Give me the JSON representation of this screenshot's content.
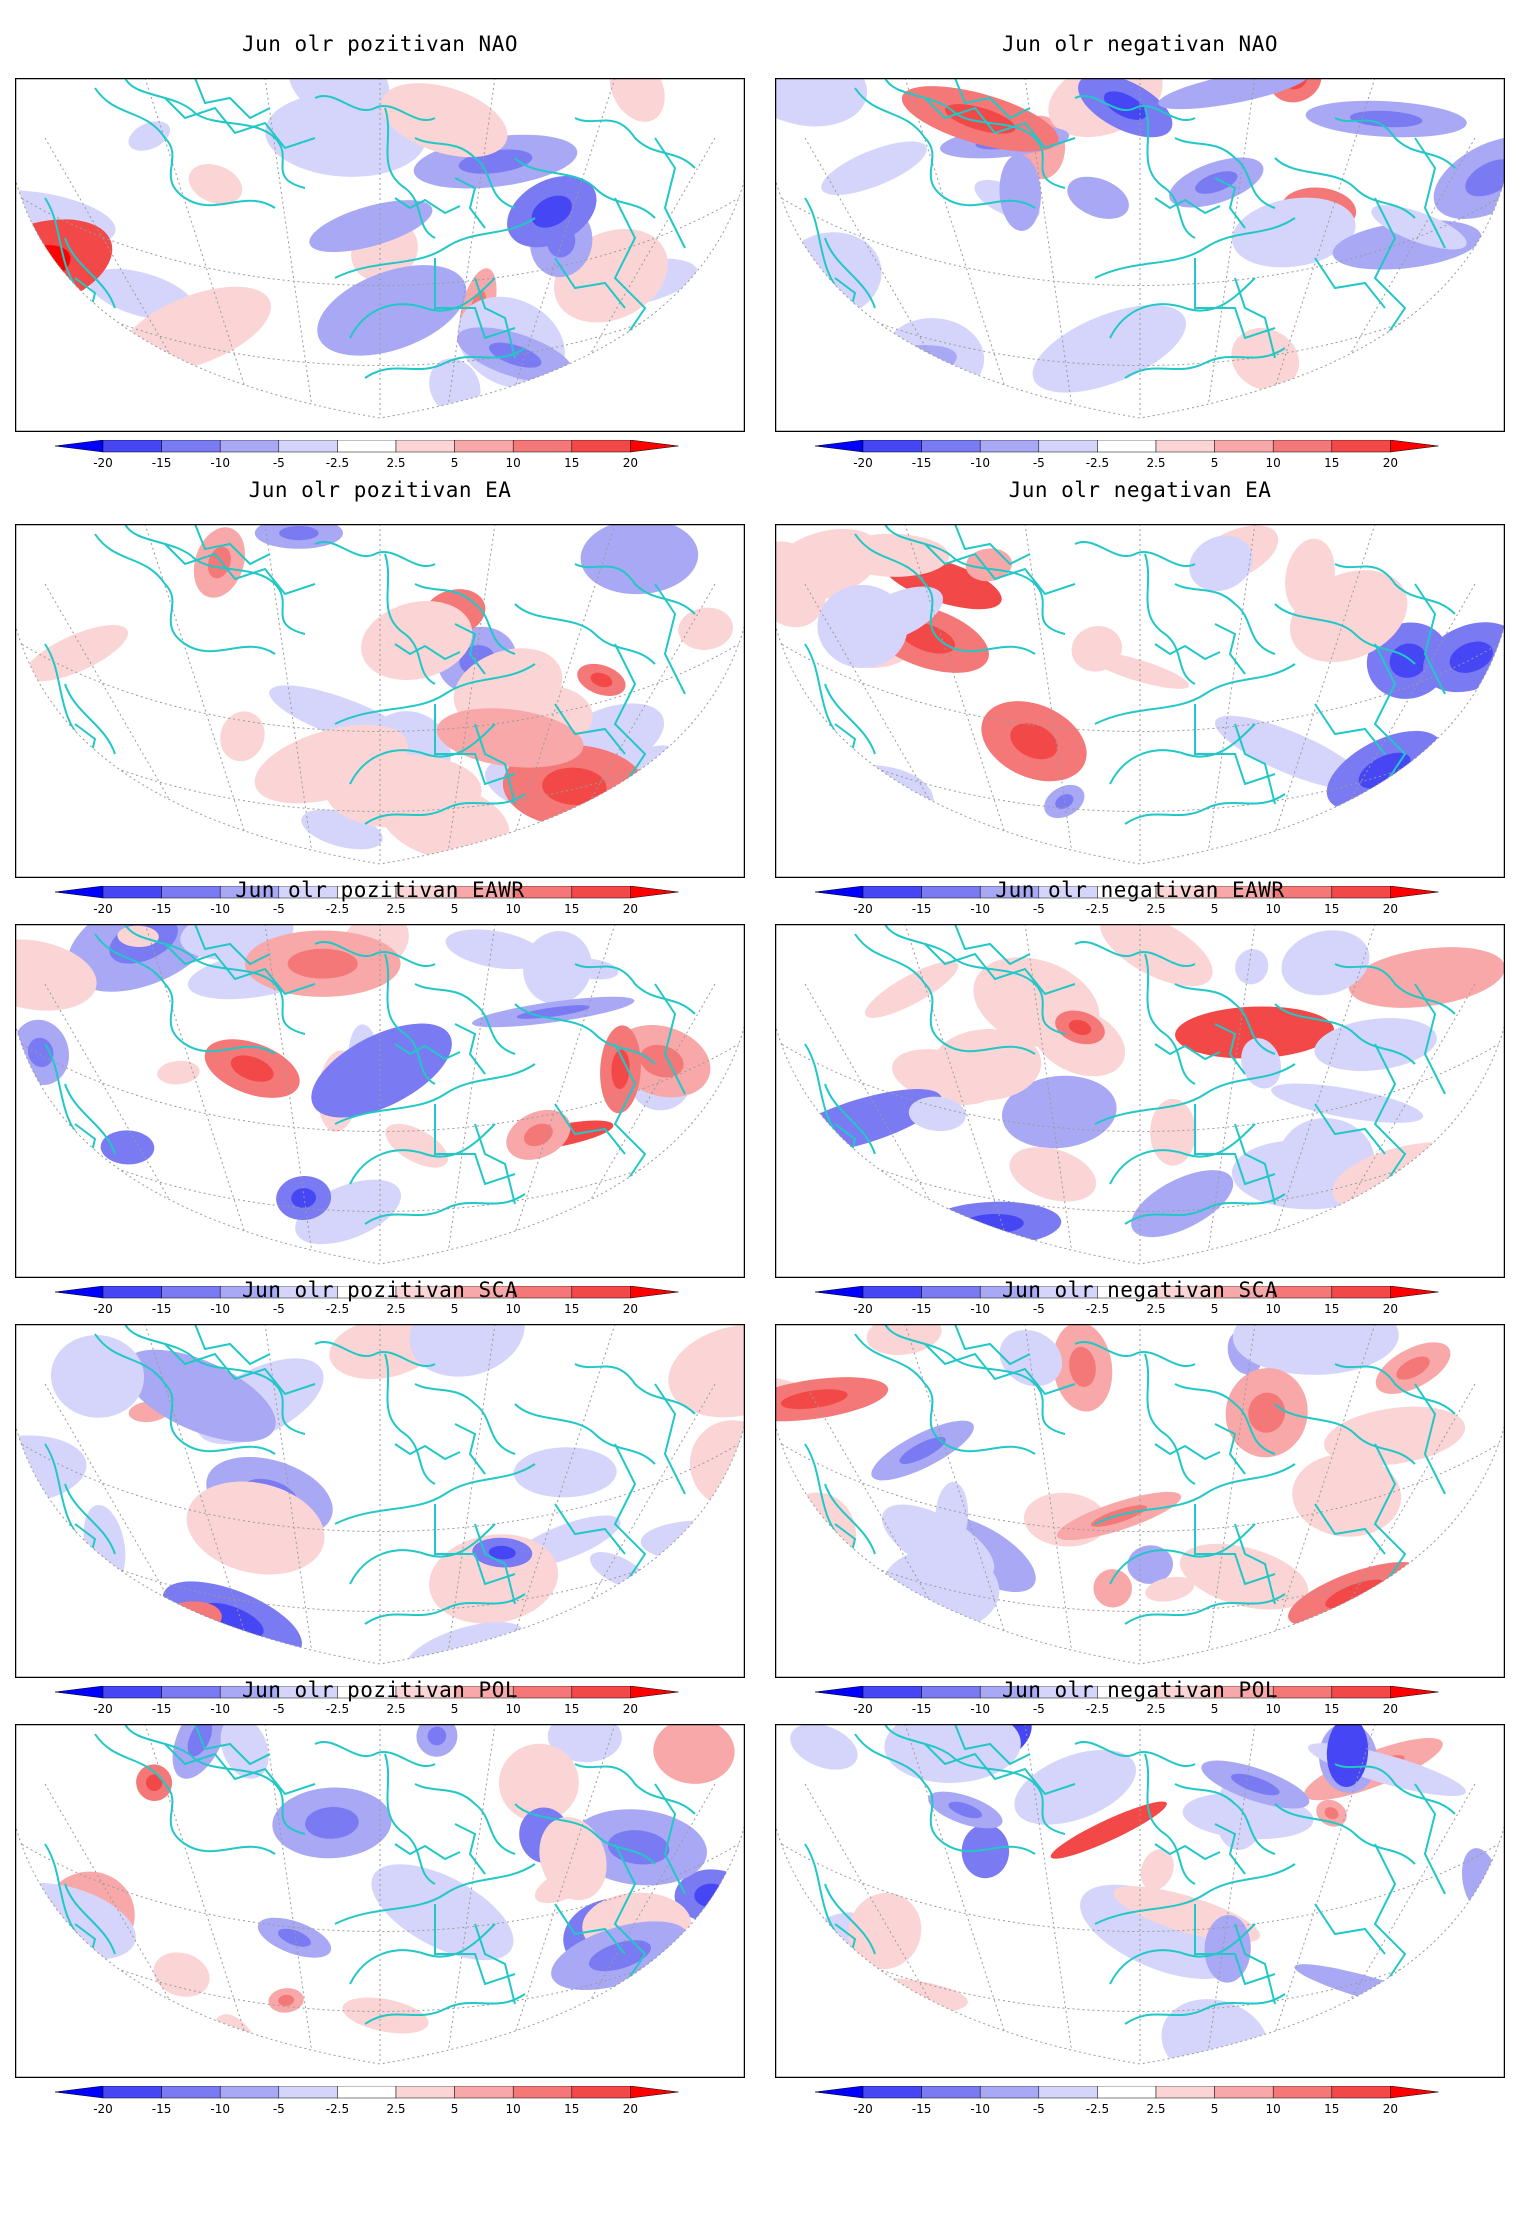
{
  "colors": {
    "coast": "#22c7c7",
    "neg": [
      "#0000ff",
      "#4646f5",
      "#7a7af2",
      "#a8a8f5",
      "#d5d5fb"
    ],
    "pos": [
      "#fbd5d5",
      "#f8a8a8",
      "#f47878",
      "#f24848",
      "#ff0000"
    ],
    "frame": "#000000",
    "grid": "#9a9a9a"
  },
  "colorbar": {
    "labels": [
      "-20",
      "-15",
      "-10",
      "-5",
      "-2.5",
      "2.5",
      "5",
      "10",
      "15",
      "20"
    ]
  },
  "panels": [
    {
      "title": "Jun olr pozitivan NAO",
      "pattern": "NAO",
      "phase": "pozitivan"
    },
    {
      "title": "Jun olr negativan NAO",
      "pattern": "NAO",
      "phase": "negativan"
    },
    {
      "title": "Jun olr pozitivan EA",
      "pattern": "EA",
      "phase": "pozitivan"
    },
    {
      "title": "Jun olr negativan EA",
      "pattern": "EA",
      "phase": "negativan"
    },
    {
      "title": "Jun olr pozitivan EAWR",
      "pattern": "EAWR",
      "phase": "pozitivan"
    },
    {
      "title": "Jun olr negativan EAWR",
      "pattern": "EAWR",
      "phase": "negativan"
    },
    {
      "title": "Jun olr pozitivan SCA",
      "pattern": "SCA",
      "phase": "pozitivan"
    },
    {
      "title": "Jun olr negativan SCA",
      "pattern": "SCA",
      "phase": "negativan"
    },
    {
      "title": "Jun olr pozitivan POL",
      "pattern": "POL",
      "phase": "pozitivan"
    },
    {
      "title": "Jun olr negativan POL",
      "pattern": "POL",
      "phase": "negativan"
    }
  ]
}
